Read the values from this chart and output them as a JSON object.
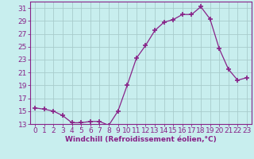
{
  "x": [
    0,
    1,
    2,
    3,
    4,
    5,
    6,
    7,
    8,
    9,
    10,
    11,
    12,
    13,
    14,
    15,
    16,
    17,
    18,
    19,
    20,
    21,
    22,
    23
  ],
  "y": [
    15.5,
    15.3,
    15.0,
    14.3,
    13.2,
    13.2,
    13.4,
    13.4,
    12.8,
    15.0,
    19.0,
    23.2,
    25.2,
    27.5,
    28.8,
    29.2,
    30.0,
    30.0,
    31.2,
    29.3,
    24.7,
    21.5,
    19.8,
    20.2
  ],
  "line_color": "#882288",
  "marker": "+",
  "marker_size": 4,
  "bg_color": "#c8eeee",
  "grid_color": "#a8cccc",
  "xlabel": "Windchill (Refroidissement éolien,°C)",
  "ylim": [
    13,
    32
  ],
  "xlim": [
    -0.5,
    23.5
  ],
  "yticks": [
    13,
    15,
    17,
    19,
    21,
    23,
    25,
    27,
    29,
    31
  ],
  "xticks": [
    0,
    1,
    2,
    3,
    4,
    5,
    6,
    7,
    8,
    9,
    10,
    11,
    12,
    13,
    14,
    15,
    16,
    17,
    18,
    19,
    20,
    21,
    22,
    23
  ],
  "axis_color": "#882288",
  "tick_color": "#882288",
  "xlabel_color": "#882288",
  "font_size": 6.5
}
